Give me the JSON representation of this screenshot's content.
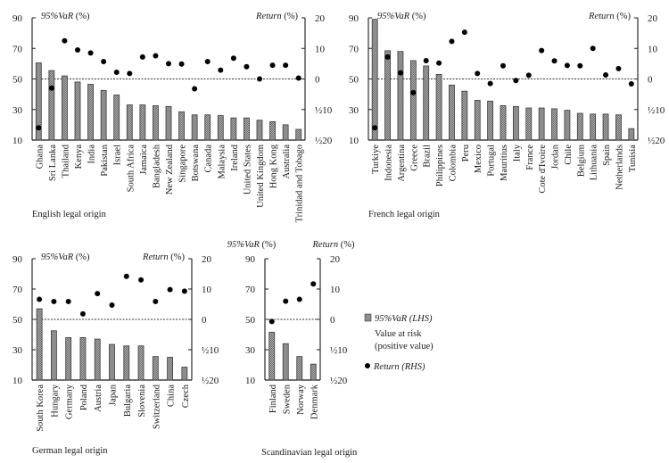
{
  "legend": {
    "var_label": "95%VaR (LHS)",
    "var_note_line1": "Value at risk",
    "var_note_line2": "(positive value)",
    "return_label": "Return (RHS)"
  },
  "colors": {
    "bar_fill": "#8c8c8c",
    "bar_edge": "#3a3a3a",
    "dot": "#000000",
    "axis": "#1a1a1a",
    "zero_line": "#333333"
  },
  "chart_data": [
    {
      "type": "bar",
      "title": "English legal origin",
      "left_axis_title": "95%VaR",
      "left_axis_unit": "(%)",
      "right_axis_title": "Return",
      "right_axis_unit": "(%)",
      "ylim_left": [
        10,
        90
      ],
      "yticks_left": [
        "90",
        "70",
        "50",
        "30",
        "10"
      ],
      "ylim_right": [
        -20,
        20
      ],
      "yticks_right": [
        "20",
        "10",
        "0",
        "½10",
        "½20"
      ],
      "zero_line": "dashed at Return = 0",
      "categories": [
        "Ghana",
        "Sri Lanka",
        "Thailand",
        "Kenya",
        "India",
        "Pakistan",
        "Israel",
        "South Africa",
        "Jamaica",
        "Bangladesh",
        "New Zealand",
        "Singapore",
        "Botswana",
        "Canada",
        "Malaysia",
        "Ireland",
        "United States",
        "United Kingdom",
        "Hong Kong",
        "Australia",
        "Trinidad and Tobago"
      ],
      "series": [
        {
          "name": "95%VaR (LHS)",
          "type": "bar",
          "axis": "left",
          "values": [
            60.5,
            55.5,
            52,
            48,
            46.5,
            42.5,
            39.5,
            33,
            33,
            32.5,
            32,
            28.5,
            26.5,
            26.5,
            26,
            24.5,
            24.5,
            23,
            22,
            20,
            17
          ]
        },
        {
          "name": "Return (RHS)",
          "type": "scatter",
          "axis": "right",
          "values": [
            -16,
            -3,
            12.5,
            9.5,
            8.5,
            5.7,
            2.2,
            1.8,
            7.2,
            7.6,
            5,
            4.9,
            -3.2,
            5.7,
            2.9,
            6.8,
            4,
            0,
            4.5,
            4.5,
            0.3
          ]
        }
      ]
    },
    {
      "type": "bar",
      "title": "French legal origin",
      "left_axis_title": "95%VaR",
      "left_axis_unit": "(%)",
      "right_axis_title": "Return",
      "right_axis_unit": "(%)",
      "ylim_left": [
        10,
        90
      ],
      "yticks_left": [
        "90",
        "70",
        "50",
        "30",
        "10"
      ],
      "ylim_right": [
        -20,
        20
      ],
      "yticks_right": [
        "20",
        "10",
        "0",
        "½10",
        "½20"
      ],
      "zero_line": "dashed at Return = 0",
      "categories": [
        "Turkiye",
        "Indonesia",
        "Argentina",
        "Greece",
        "Brazil",
        "Philippines",
        "Colombia",
        "Peru",
        "Mexico",
        "Portugal",
        "Mauritius",
        "Italy",
        "France",
        "Cote d'Ivoire",
        "Jordan",
        "Chile",
        "Belgium",
        "Lithuania",
        "Spain",
        "Netherlands",
        "Tunisia"
      ],
      "series": [
        {
          "name": "95%VaR (LHS)",
          "type": "bar",
          "axis": "left",
          "values": [
            89,
            68.5,
            68,
            62,
            58.5,
            53,
            46,
            42,
            36,
            35.5,
            32.5,
            32,
            31,
            31,
            30.5,
            29.5,
            27.5,
            27,
            27,
            26.5,
            17.5
          ]
        },
        {
          "name": "Return (RHS)",
          "type": "scatter",
          "axis": "right",
          "values": [
            -16,
            7.2,
            2,
            -4.5,
            6,
            5.2,
            12.3,
            15.3,
            1.8,
            -1.5,
            4.3,
            -0.5,
            1.2,
            9.3,
            5.9,
            4.4,
            4.3,
            10,
            1.3,
            3.4,
            -1.6
          ]
        }
      ]
    },
    {
      "type": "bar",
      "title": "German legal origin",
      "left_axis_title": "95%VaR",
      "left_axis_unit": "(%)",
      "right_axis_title": "Return",
      "right_axis_unit": "(%)",
      "ylim_left": [
        10,
        90
      ],
      "yticks_left": [
        "90",
        "70",
        "50",
        "30",
        "10"
      ],
      "ylim_right": [
        -20,
        20
      ],
      "yticks_right": [
        "20",
        "10",
        "0",
        "½10",
        "½20"
      ],
      "zero_line": "dashed at Return = 0",
      "categories": [
        "South Korea",
        "Hungary",
        "Germany",
        "Poland",
        "Austria",
        "Japan",
        "Bulgaria",
        "Slovenia",
        "Switzerland",
        "China",
        "Czech"
      ],
      "series": [
        {
          "name": "95%VaR (LHS)",
          "type": "bar",
          "axis": "left",
          "values": [
            57,
            42.5,
            38,
            38,
            37,
            33.5,
            32.5,
            32.5,
            25.5,
            25,
            18.5
          ]
        },
        {
          "name": "Return (RHS)",
          "type": "scatter",
          "axis": "right",
          "values": [
            6.6,
            5.9,
            5.9,
            1.8,
            8.5,
            4.7,
            14.2,
            13,
            5.9,
            9.8,
            9.3
          ]
        }
      ]
    },
    {
      "type": "bar",
      "title": "Scandinavian legal origin",
      "left_axis_title": "95%VaR",
      "left_axis_unit": "(%)",
      "right_axis_title": "Return",
      "right_axis_unit": "(%)",
      "ylim_left": [
        10,
        90
      ],
      "yticks_left": [
        "90",
        "70",
        "50",
        "30",
        "10"
      ],
      "ylim_right": [
        -20,
        20
      ],
      "yticks_right": [
        "20",
        "10",
        "0",
        "½10",
        "½20"
      ],
      "zero_line": "dashed at Return = 0",
      "categories": [
        "Finland",
        "Sweden",
        "Norway",
        "Denmark"
      ],
      "series": [
        {
          "name": "95%VaR (LHS)",
          "type": "bar",
          "axis": "left",
          "values": [
            41.5,
            34,
            25.5,
            20.5
          ]
        },
        {
          "name": "Return (RHS)",
          "type": "scatter",
          "axis": "right",
          "values": [
            -0.7,
            6,
            6.6,
            11.7
          ]
        }
      ]
    }
  ]
}
